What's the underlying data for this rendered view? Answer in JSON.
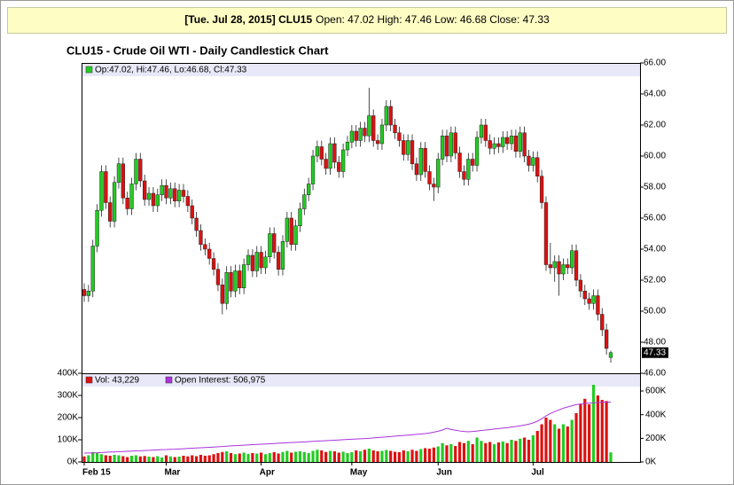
{
  "header_date": "[Tue. Jul 28, 2015] CLU15",
  "header_values": "Open: 47.02 High: 47.46 Low: 46.68 Close: 47.33",
  "chart_data": [
    {
      "type": "candlestick",
      "title": "CLU15 - Crude Oil WTI - Daily Candlestick Chart",
      "legend": "Op:47.02, Hi:47.46, Lo:46.68, Cl:47.33",
      "up_color": "#22cc22",
      "down_color": "#dd1111",
      "xlim": [
        0,
        122
      ],
      "ylim": [
        46,
        66
      ],
      "yticks": [
        {
          "value": 46,
          "label": "46.00"
        },
        {
          "value": 48,
          "label": "48.00"
        },
        {
          "value": 50,
          "label": "50.00"
        },
        {
          "value": 52,
          "label": "52.00"
        },
        {
          "value": 54,
          "label": "54.00"
        },
        {
          "value": 56,
          "label": "56.00"
        },
        {
          "value": 58,
          "label": "58.00"
        },
        {
          "value": 60,
          "label": "60.00"
        },
        {
          "value": 62,
          "label": "62.00"
        },
        {
          "value": 64,
          "label": "64.00"
        },
        {
          "value": 66,
          "label": "66.00"
        }
      ],
      "open": [
        51.4,
        51.0,
        51.3,
        54.2,
        56.5,
        59.0,
        57.0,
        55.8,
        58.3,
        59.5,
        57.3,
        56.6,
        58.2,
        59.8,
        58.4,
        57.2,
        57.6,
        56.8,
        57.5,
        58.1,
        57.3,
        57.9,
        57.1,
        57.8,
        57.4,
        56.8,
        56.0,
        55.2,
        54.3,
        54.0,
        53.4,
        52.7,
        51.7,
        50.5,
        52.5,
        51.3,
        52.6,
        51.5,
        53.0,
        53.6,
        52.6,
        53.8,
        52.8,
        53.5,
        55.0,
        53.8,
        52.7,
        54.5,
        56.0,
        54.3,
        55.5,
        56.6,
        57.5,
        58.2,
        60.0,
        60.6,
        59.8,
        59.2,
        60.8,
        59.6,
        59.0,
        60.4,
        60.9,
        61.6,
        61.0,
        61.8,
        61.3,
        62.6,
        61.0,
        60.8,
        62.0,
        63.2,
        62.0,
        61.5,
        61.0,
        60.1,
        61.0,
        59.5,
        58.8,
        60.5,
        59.0,
        58.2,
        58.0,
        59.8,
        61.3,
        60.0,
        61.5,
        60.2,
        59.0,
        58.5,
        59.8,
        59.4,
        61.2,
        62.0,
        61.0,
        60.5,
        60.8,
        60.6,
        61.2,
        60.8,
        61.3,
        60.3,
        61.5,
        60.0,
        59.4,
        59.9,
        58.7,
        57.0,
        53.0,
        52.8,
        53.2,
        52.4,
        53.0,
        52.8,
        53.9,
        52.0,
        51.3,
        50.8,
        50.5,
        51.0,
        49.8,
        48.8,
        47.02
      ],
      "high": [
        51.8,
        51.7,
        54.6,
        56.9,
        59.4,
        59.4,
        57.4,
        58.7,
        59.9,
        59.9,
        57.7,
        58.6,
        60.2,
        60.2,
        58.8,
        58.0,
        58.0,
        57.9,
        58.5,
        58.5,
        58.3,
        58.3,
        58.2,
        58.2,
        57.8,
        57.2,
        56.4,
        55.6,
        54.7,
        54.4,
        53.8,
        53.1,
        52.1,
        52.9,
        52.9,
        53.0,
        53.0,
        53.4,
        54.0,
        54.0,
        54.2,
        54.2,
        53.9,
        55.4,
        55.4,
        54.2,
        54.9,
        56.4,
        56.4,
        55.9,
        57.0,
        57.9,
        58.6,
        60.4,
        61.0,
        61.0,
        60.2,
        61.2,
        61.2,
        60.0,
        60.8,
        61.3,
        62.0,
        62.0,
        62.2,
        62.2,
        64.4,
        63.0,
        61.4,
        62.4,
        63.6,
        63.6,
        62.4,
        61.9,
        61.4,
        61.4,
        61.4,
        59.9,
        60.9,
        60.9,
        59.4,
        58.6,
        60.2,
        61.7,
        61.7,
        61.9,
        61.9,
        60.6,
        59.4,
        60.2,
        60.2,
        61.6,
        62.4,
        62.4,
        61.4,
        61.2,
        61.2,
        61.6,
        61.6,
        61.7,
        61.7,
        61.9,
        61.9,
        60.4,
        60.3,
        60.3,
        59.1,
        57.4,
        54.4,
        53.6,
        53.6,
        53.4,
        53.4,
        54.3,
        54.3,
        52.4,
        51.7,
        51.2,
        51.4,
        51.4,
        50.2,
        49.2,
        47.46
      ],
      "low": [
        50.6,
        50.6,
        50.9,
        53.8,
        56.1,
        56.6,
        55.4,
        55.4,
        57.9,
        56.9,
        56.2,
        56.2,
        57.8,
        58.0,
        56.8,
        56.8,
        56.4,
        56.4,
        57.1,
        56.9,
        56.9,
        56.7,
        56.7,
        57.0,
        56.4,
        55.6,
        54.8,
        53.9,
        53.6,
        53.0,
        52.3,
        51.3,
        49.8,
        50.1,
        50.9,
        50.9,
        51.1,
        51.1,
        52.6,
        52.2,
        52.2,
        52.4,
        52.4,
        53.1,
        53.4,
        52.3,
        52.3,
        54.1,
        53.9,
        53.9,
        55.1,
        56.2,
        57.1,
        57.8,
        59.6,
        59.4,
        58.8,
        58.8,
        59.2,
        58.6,
        58.6,
        60.0,
        60.5,
        60.6,
        60.6,
        60.9,
        60.9,
        60.6,
        60.4,
        60.4,
        61.6,
        61.6,
        61.1,
        60.6,
        59.7,
        59.7,
        59.1,
        58.4,
        58.4,
        58.6,
        57.8,
        57.1,
        57.6,
        59.4,
        59.6,
        59.6,
        59.8,
        58.6,
        58.1,
        58.1,
        59.0,
        59.0,
        60.8,
        60.6,
        60.1,
        60.1,
        60.2,
        60.2,
        60.4,
        60.4,
        59.9,
        59.9,
        59.6,
        59.0,
        59.0,
        58.3,
        56.6,
        52.6,
        52.4,
        51.9,
        51.0,
        52.0,
        52.4,
        52.4,
        51.6,
        50.9,
        50.4,
        50.1,
        50.1,
        49.4,
        48.4,
        47.2,
        46.68
      ],
      "close": [
        51.0,
        51.3,
        54.2,
        56.5,
        59.0,
        57.0,
        55.8,
        58.3,
        59.5,
        57.3,
        56.6,
        58.2,
        59.8,
        58.4,
        57.2,
        57.6,
        56.8,
        57.5,
        58.1,
        57.3,
        57.9,
        57.1,
        57.8,
        57.4,
        56.8,
        56.0,
        55.2,
        54.3,
        54.0,
        53.4,
        52.7,
        51.7,
        50.5,
        52.5,
        51.3,
        52.6,
        51.5,
        53.0,
        53.6,
        52.6,
        53.8,
        52.8,
        53.5,
        55.0,
        53.8,
        52.7,
        54.5,
        56.0,
        54.3,
        55.5,
        56.6,
        57.5,
        58.2,
        60.0,
        60.6,
        59.8,
        59.2,
        60.8,
        59.6,
        59.0,
        60.4,
        60.9,
        61.6,
        61.0,
        61.8,
        61.3,
        62.6,
        61.0,
        60.8,
        62.0,
        63.2,
        62.0,
        61.5,
        61.0,
        60.1,
        61.0,
        59.5,
        58.8,
        60.5,
        59.0,
        58.2,
        58.0,
        59.8,
        61.3,
        60.0,
        61.5,
        60.2,
        59.0,
        58.5,
        59.8,
        59.4,
        61.2,
        62.0,
        61.0,
        60.5,
        60.8,
        60.6,
        61.2,
        60.8,
        61.3,
        60.3,
        61.5,
        60.0,
        59.4,
        59.9,
        58.7,
        57.0,
        53.0,
        52.8,
        53.2,
        52.4,
        53.0,
        52.8,
        53.9,
        52.0,
        51.3,
        50.8,
        50.5,
        51.0,
        49.8,
        48.8,
        47.6,
        47.33
      ]
    },
    {
      "type": "bar",
      "xlim": [
        0,
        122
      ],
      "xticks": [
        {
          "value": 0,
          "label": "Feb 15"
        },
        {
          "value": 19,
          "label": "Mar"
        },
        {
          "value": 41,
          "label": "Apr"
        },
        {
          "value": 62,
          "label": "May"
        },
        {
          "value": 82,
          "label": "Jun"
        },
        {
          "value": 104,
          "label": "Jul"
        }
      ],
      "ylim": [
        0,
        400000
      ],
      "yticks": [
        {
          "value": 0,
          "label": "0K"
        },
        {
          "value": 100000,
          "label": "100K"
        },
        {
          "value": 200000,
          "label": "200K"
        },
        {
          "value": 300000,
          "label": "300K"
        },
        {
          "value": 400000,
          "label": "400K"
        }
      ],
      "y2lim": [
        0,
        750000
      ],
      "y2ticks": [
        {
          "value": 0,
          "label": "0K"
        },
        {
          "value": 200000,
          "label": "200K"
        },
        {
          "value": 400000,
          "label": "400K"
        },
        {
          "value": 600000,
          "label": "600K"
        }
      ],
      "series": [
        {
          "name": "Vol: 43,229",
          "color": "#dd1111",
          "values": [
            25000,
            30000,
            45000,
            40000,
            35000,
            30000,
            28000,
            32000,
            30000,
            26000,
            22000,
            28000,
            30000,
            25000,
            27000,
            24000,
            22000,
            26000,
            20000,
            30000,
            25000,
            22000,
            24000,
            28000,
            25000,
            30000,
            26000,
            32000,
            28000,
            30000,
            35000,
            40000,
            45000,
            48000,
            40000,
            35000,
            38000,
            42000,
            36000,
            40000,
            38000,
            42000,
            35000,
            40000,
            44000,
            38000,
            45000,
            50000,
            42000,
            46000,
            48000,
            44000,
            40000,
            50000,
            55000,
            52000,
            45000,
            50000,
            48000,
            42000,
            46000,
            40000,
            44000,
            52000,
            48000,
            55000,
            60000,
            52000,
            48000,
            50000,
            54000,
            50000,
            46000,
            44000,
            52000,
            48000,
            55000,
            50000,
            58000,
            62000,
            60000,
            65000,
            70000,
            85000,
            75000,
            80000,
            72000,
            90000,
            85000,
            95000,
            80000,
            110000,
            95000,
            85000,
            90000,
            80000,
            88000,
            92000,
            85000,
            100000,
            95000,
            105000,
            110000,
            100000,
            120000,
            140000,
            170000,
            200000,
            190000,
            170000,
            150000,
            170000,
            160000,
            190000,
            220000,
            260000,
            285000,
            260000,
            348000,
            300000,
            280000,
            275000,
            43229
          ]
        },
        {
          "name": "Open Interest: 506,975",
          "color": "#aa33dd",
          "type": "line",
          "axis": "y2",
          "values": [
            75000,
            76000,
            77000,
            78000,
            80000,
            82000,
            84000,
            85000,
            86000,
            88000,
            90000,
            92000,
            94000,
            95000,
            97000,
            98000,
            100000,
            102000,
            104000,
            105000,
            107000,
            108000,
            110000,
            112000,
            114000,
            116000,
            118000,
            120000,
            122000,
            124000,
            126000,
            128000,
            130000,
            133000,
            136000,
            138000,
            140000,
            142000,
            144000,
            146000,
            148000,
            150000,
            152000,
            154000,
            156000,
            158000,
            160000,
            162000,
            164000,
            166000,
            168000,
            170000,
            172000,
            174000,
            176000,
            178000,
            180000,
            182000,
            184000,
            186000,
            188000,
            190000,
            192000,
            194000,
            196000,
            198000,
            200000,
            203000,
            206000,
            209000,
            212000,
            215000,
            218000,
            221000,
            224000,
            227000,
            230000,
            233000,
            236000,
            240000,
            245000,
            252000,
            260000,
            270000,
            285000,
            275000,
            268000,
            262000,
            258000,
            255000,
            258000,
            262000,
            266000,
            270000,
            274000,
            278000,
            282000,
            286000,
            290000,
            295000,
            300000,
            306000,
            312000,
            320000,
            330000,
            345000,
            365000,
            390000,
            410000,
            425000,
            440000,
            455000,
            465000,
            475000,
            485000,
            490000,
            495000,
            498000,
            500000,
            503000,
            505000,
            506000,
            506975
          ]
        }
      ]
    }
  ]
}
